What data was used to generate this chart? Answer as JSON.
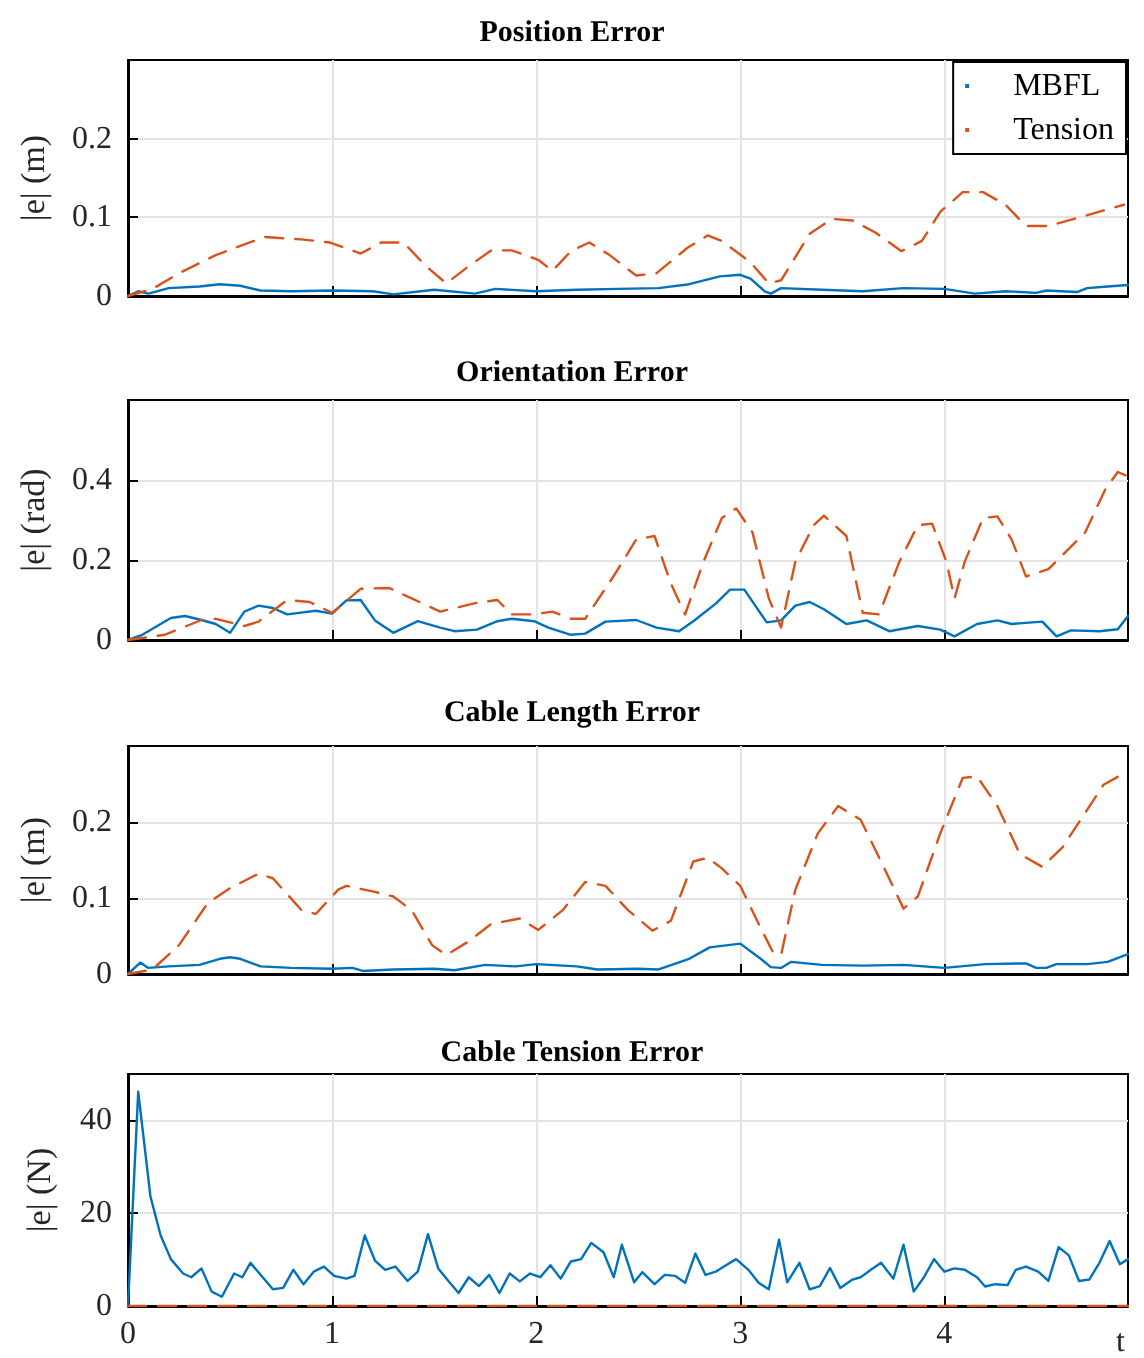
{
  "chart_data": [
    {
      "type": "line",
      "title": "Position Error",
      "ylabel": "|e| (m)",
      "xlim": [
        0,
        4.9
      ],
      "xticks": [
        0,
        1,
        2,
        3,
        4
      ],
      "ylim": [
        0,
        0.3
      ],
      "yticks": [
        0,
        0.1,
        0.2
      ],
      "grid": true,
      "legend": "top right",
      "tick_labels": "y",
      "series": [
        {
          "name": "MBFL",
          "color": "#0072bd",
          "line_style": "solid",
          "x": [
            0,
            0.05,
            0.1,
            0.2,
            0.35,
            0.45,
            0.55,
            0.65,
            0.8,
            1,
            1.2,
            1.3,
            1.5,
            1.7,
            1.8,
            2,
            2.2,
            2.4,
            2.6,
            2.75,
            2.9,
            3.0,
            3.05,
            3.12,
            3.15,
            3.2,
            3.4,
            3.6,
            3.8,
            4.0,
            4.15,
            4.3,
            4.45,
            4.5,
            4.65,
            4.7,
            4.8,
            4.9
          ],
          "values": [
            0,
            0.006,
            0.003,
            0.01,
            0.012,
            0.015,
            0.013,
            0.007,
            0.006,
            0.007,
            0.006,
            0.002,
            0.008,
            0.003,
            0.009,
            0.006,
            0.008,
            0.009,
            0.01,
            0.015,
            0.025,
            0.027,
            0.022,
            0.006,
            0.003,
            0.01,
            0.008,
            0.006,
            0.01,
            0.009,
            0.003,
            0.006,
            0.004,
            0.007,
            0.005,
            0.01,
            0.012,
            0.014
          ]
        },
        {
          "name": "Tension",
          "color": "#d95319",
          "line_style": "dashed",
          "x": [
            0,
            0.12,
            0.25,
            0.43,
            0.67,
            0.85,
            0.99,
            1.14,
            1.24,
            1.35,
            1.46,
            1.56,
            1.67,
            1.78,
            1.88,
            2.01,
            2.08,
            2.17,
            2.26,
            2.36,
            2.49,
            2.59,
            2.74,
            2.84,
            2.91,
            3.05,
            3.14,
            3.2,
            3.34,
            3.45,
            3.55,
            3.66,
            3.79,
            3.89,
            3.98,
            4.09,
            4.19,
            4.3,
            4.4,
            4.51,
            4.69,
            4.88
          ],
          "values": [
            0,
            0.009,
            0.029,
            0.052,
            0.075,
            0.072,
            0.068,
            0.054,
            0.068,
            0.068,
            0.038,
            0.016,
            0.038,
            0.058,
            0.058,
            0.046,
            0.032,
            0.057,
            0.068,
            0.052,
            0.026,
            0.029,
            0.061,
            0.077,
            0.07,
            0.043,
            0.016,
            0.02,
            0.079,
            0.098,
            0.096,
            0.081,
            0.057,
            0.07,
            0.107,
            0.132,
            0.132,
            0.116,
            0.089,
            0.089,
            0.102,
            0.116
          ]
        }
      ]
    },
    {
      "type": "line",
      "title": "Orientation Error",
      "ylabel": "|e| (rad)",
      "xlim": [
        0,
        4.9
      ],
      "xticks": [
        0,
        1,
        2,
        3,
        4
      ],
      "ylim": [
        0,
        0.6
      ],
      "yticks": [
        0,
        0.2,
        0.4
      ],
      "grid": true,
      "tick_labels": "y",
      "series": [
        {
          "color": "#0072bd",
          "line_style": "solid",
          "x": [
            0,
            0.07,
            0.21,
            0.28,
            0.36,
            0.43,
            0.5,
            0.57,
            0.64,
            0.71,
            0.78,
            0.92,
            1.0,
            1.07,
            1.14,
            1.21,
            1.3,
            1.42,
            1.53,
            1.6,
            1.71,
            1.81,
            1.88,
            1.99,
            2.06,
            2.17,
            2.24,
            2.34,
            2.49,
            2.59,
            2.7,
            2.77,
            2.88,
            2.95,
            3.02,
            3.13,
            3.2,
            3.27,
            3.34,
            3.41,
            3.52,
            3.62,
            3.73,
            3.87,
            3.98,
            4.05,
            4.16,
            4.26,
            4.33,
            4.48,
            4.55,
            4.62,
            4.76,
            4.85,
            4.9
          ],
          "values": [
            0,
            0.013,
            0.055,
            0.06,
            0.05,
            0.04,
            0.018,
            0.071,
            0.086,
            0.08,
            0.064,
            0.073,
            0.066,
            0.099,
            0.1,
            0.049,
            0.018,
            0.047,
            0.031,
            0.022,
            0.026,
            0.047,
            0.053,
            0.047,
            0.031,
            0.013,
            0.016,
            0.046,
            0.05,
            0.031,
            0.022,
            0.047,
            0.091,
            0.126,
            0.126,
            0.044,
            0.049,
            0.086,
            0.095,
            0.077,
            0.04,
            0.049,
            0.022,
            0.035,
            0.026,
            0.009,
            0.04,
            0.049,
            0.04,
            0.046,
            0.009,
            0.024,
            0.022,
            0.027,
            0.06
          ]
        },
        {
          "color": "#d95319",
          "line_style": "dashed",
          "x": [
            0,
            0.18,
            0.36,
            0.43,
            0.57,
            0.64,
            0.78,
            0.89,
            1.0,
            1.14,
            1.28,
            1.39,
            1.53,
            1.71,
            1.81,
            1.88,
            1.99,
            2.08,
            2.17,
            2.24,
            2.38,
            2.49,
            2.58,
            2.66,
            2.73,
            2.82,
            2.91,
            2.98,
            3.06,
            3.14,
            3.2,
            3.27,
            3.36,
            3.41,
            3.52,
            3.6,
            3.68,
            3.78,
            3.87,
            3.94,
            4.01,
            4.05,
            4.1,
            4.19,
            4.26,
            4.33,
            4.4,
            4.51,
            4.69,
            4.79,
            4.85,
            4.9
          ],
          "values": [
            0,
            0.013,
            0.05,
            0.053,
            0.035,
            0.046,
            0.1,
            0.095,
            0.068,
            0.128,
            0.13,
            0.104,
            0.071,
            0.093,
            0.1,
            0.064,
            0.064,
            0.071,
            0.053,
            0.053,
            0.16,
            0.251,
            0.26,
            0.141,
            0.064,
            0.196,
            0.305,
            0.329,
            0.269,
            0.104,
            0.031,
            0.196,
            0.287,
            0.311,
            0.26,
            0.068,
            0.064,
            0.196,
            0.287,
            0.291,
            0.196,
            0.104,
            0.196,
            0.305,
            0.309,
            0.251,
            0.159,
            0.177,
            0.269,
            0.378,
            0.42,
            0.409
          ]
        }
      ]
    },
    {
      "type": "line",
      "title": "Cable Length Error",
      "ylabel": "|e| (m)",
      "xlim": [
        0,
        4.9
      ],
      "xticks": [
        0,
        1,
        2,
        3,
        4
      ],
      "ylim": [
        0,
        0.3
      ],
      "yticks": [
        0,
        0.1,
        0.2
      ],
      "grid": true,
      "tick_labels": "y",
      "series": [
        {
          "color": "#0072bd",
          "line_style": "solid",
          "x": [
            0,
            0.06,
            0.1,
            0.2,
            0.35,
            0.45,
            0.5,
            0.55,
            0.65,
            0.8,
            1.0,
            1.1,
            1.15,
            1.3,
            1.5,
            1.6,
            1.75,
            1.9,
            2.0,
            2.2,
            2.3,
            2.5,
            2.6,
            2.75,
            2.85,
            3.0,
            3.1,
            3.15,
            3.2,
            3.25,
            3.4,
            3.6,
            3.8,
            4.0,
            4.2,
            4.4,
            4.45,
            4.5,
            4.55,
            4.7,
            4.8,
            4.9
          ],
          "values": [
            0,
            0.015,
            0.008,
            0.01,
            0.012,
            0.02,
            0.022,
            0.02,
            0.01,
            0.008,
            0.007,
            0.008,
            0.004,
            0.006,
            0.007,
            0.005,
            0.012,
            0.01,
            0.013,
            0.01,
            0.006,
            0.007,
            0.006,
            0.02,
            0.035,
            0.04,
            0.02,
            0.009,
            0.008,
            0.016,
            0.012,
            0.011,
            0.012,
            0.008,
            0.013,
            0.014,
            0.008,
            0.008,
            0.013,
            0.013,
            0.016,
            0.026
          ]
        },
        {
          "color": "#d95319",
          "line_style": "dashed",
          "x": [
            0,
            0.12,
            0.25,
            0.39,
            0.5,
            0.64,
            0.71,
            0.85,
            0.92,
            1.03,
            1.07,
            1.21,
            1.3,
            1.39,
            1.49,
            1.56,
            1.67,
            1.78,
            1.92,
            2.01,
            2.13,
            2.24,
            2.34,
            2.45,
            2.57,
            2.66,
            2.77,
            2.84,
            2.91,
            3.0,
            3.09,
            3.16,
            3.2,
            3.27,
            3.38,
            3.48,
            3.59,
            3.69,
            3.8,
            3.87,
            3.98,
            4.09,
            4.16,
            4.26,
            4.37,
            4.48,
            4.58,
            4.69,
            4.78,
            4.9
          ],
          "values": [
            0,
            0.006,
            0.038,
            0.093,
            0.113,
            0.132,
            0.126,
            0.084,
            0.079,
            0.111,
            0.116,
            0.108,
            0.102,
            0.084,
            0.038,
            0.025,
            0.043,
            0.066,
            0.073,
            0.058,
            0.084,
            0.121,
            0.116,
            0.084,
            0.057,
            0.07,
            0.148,
            0.153,
            0.139,
            0.116,
            0.066,
            0.029,
            0.025,
            0.111,
            0.185,
            0.221,
            0.203,
            0.148,
            0.086,
            0.102,
            0.185,
            0.258,
            0.26,
            0.221,
            0.158,
            0.141,
            0.167,
            0.212,
            0.249,
            0.267
          ]
        }
      ]
    },
    {
      "type": "line",
      "title": "Cable Tension Error",
      "ylabel": "|e| (N)",
      "xlabel": "t",
      "xlim": [
        0,
        4.9
      ],
      "xticks": [
        0,
        1,
        2,
        3,
        4
      ],
      "ylim": [
        0,
        50
      ],
      "yticks": [
        0,
        20,
        40
      ],
      "grid": true,
      "series": [
        {
          "color": "#0072bd",
          "line_style": "solid",
          "x": [
            0,
            0.05,
            0.11,
            0.16,
            0.21,
            0.27,
            0.31,
            0.36,
            0.41,
            0.46,
            0.52,
            0.56,
            0.6,
            0.66,
            0.71,
            0.76,
            0.81,
            0.86,
            0.91,
            0.96,
            1.01,
            1.07,
            1.11,
            1.16,
            1.21,
            1.26,
            1.31,
            1.37,
            1.42,
            1.47,
            1.52,
            1.57,
            1.62,
            1.67,
            1.72,
            1.77,
            1.82,
            1.87,
            1.92,
            1.97,
            2.02,
            2.07,
            2.12,
            2.17,
            2.22,
            2.27,
            2.33,
            2.38,
            2.42,
            2.48,
            2.52,
            2.58,
            2.63,
            2.68,
            2.73,
            2.78,
            2.83,
            2.88,
            2.93,
            2.98,
            3.04,
            3.09,
            3.14,
            3.19,
            3.23,
            3.29,
            3.34,
            3.39,
            3.44,
            3.49,
            3.55,
            3.59,
            3.64,
            3.69,
            3.75,
            3.8,
            3.85,
            3.9,
            3.95,
            4.0,
            4.05,
            4.1,
            4.16,
            4.2,
            4.25,
            4.31,
            4.35,
            4.4,
            4.46,
            4.51,
            4.56,
            4.61,
            4.66,
            4.71,
            4.76,
            4.81,
            4.86,
            4.9
          ],
          "values": [
            0,
            46.2,
            23.6,
            15.2,
            10.1,
            7.0,
            6.2,
            8.1,
            3.1,
            2.0,
            7.0,
            6.2,
            9.3,
            6.2,
            3.6,
            3.9,
            7.8,
            4.7,
            7.4,
            8.5,
            6.5,
            5.9,
            6.5,
            15.2,
            9.8,
            7.8,
            8.5,
            5.4,
            7.4,
            15.5,
            8.1,
            5.4,
            2.8,
            6.2,
            4.3,
            6.7,
            2.8,
            7.0,
            5.3,
            7.0,
            6.2,
            8.8,
            5.9,
            9.6,
            10.1,
            13.6,
            11.6,
            6.2,
            13.2,
            5.1,
            7.3,
            4.7,
            6.7,
            6.5,
            5.0,
            11.3,
            6.7,
            7.4,
            8.8,
            10.1,
            7.8,
            5.0,
            3.6,
            14.3,
            5.1,
            9.3,
            3.6,
            4.3,
            8.2,
            3.9,
            5.7,
            6.2,
            7.8,
            9.3,
            5.9,
            13.2,
            3.1,
            6.2,
            10.1,
            7.4,
            8.1,
            7.8,
            6.2,
            4.2,
            4.7,
            4.5,
            7.8,
            8.5,
            7.4,
            5.4,
            12.7,
            10.9,
            5.4,
            5.7,
            9.3,
            14.0,
            9.0,
            10.1
          ]
        },
        {
          "color": "#d95319",
          "line_style": "dashed",
          "x": [
            0,
            4.9
          ],
          "values": [
            0,
            0
          ]
        }
      ]
    }
  ]
}
